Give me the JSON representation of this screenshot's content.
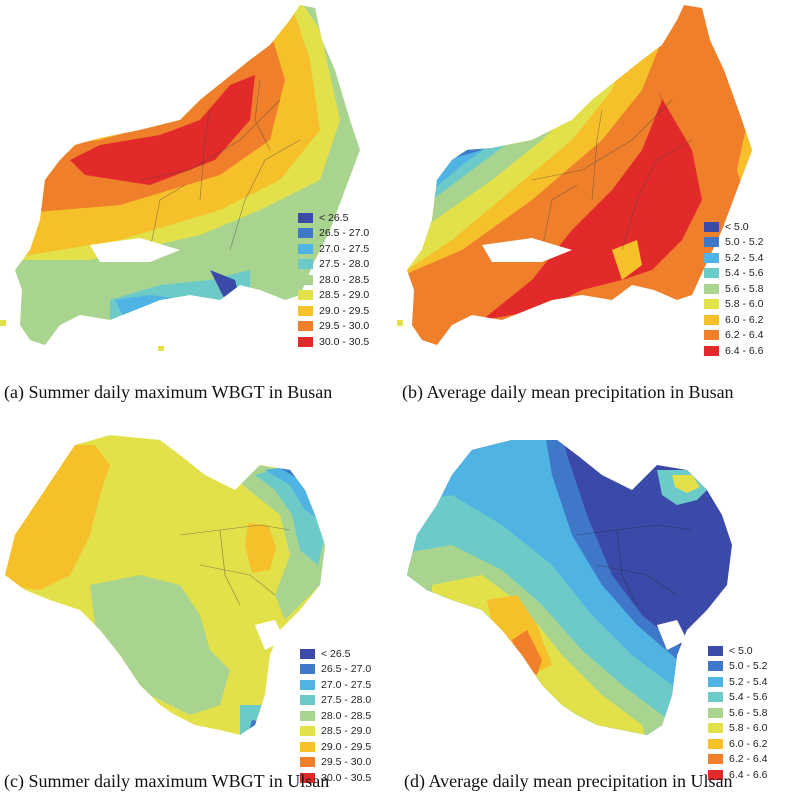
{
  "panels": [
    {
      "id": "a",
      "caption": "(a) Summer daily maximum WBGT in Busan",
      "legend": [
        {
          "label": "< 26.5",
          "color": "#3b4aa8"
        },
        {
          "label": "26.5 - 27.0",
          "color": "#3f78c8"
        },
        {
          "label": "27.0 - 27.5",
          "color": "#4fb3e3"
        },
        {
          "label": "27.5 - 28.0",
          "color": "#6ccac9"
        },
        {
          "label": "28.0 - 28.5",
          "color": "#a8d48f"
        },
        {
          "label": "28.5 - 29.0",
          "color": "#e2e14a"
        },
        {
          "label": "29.0 - 29.5",
          "color": "#f6c02b"
        },
        {
          "label": "29.5 - 30.0",
          "color": "#ef7f2a"
        },
        {
          "label": "30.0 - 30.5",
          "color": "#e32a2a"
        }
      ]
    },
    {
      "id": "b",
      "caption": "(b) Average daily mean precipitation in Busan",
      "legend": [
        {
          "label": "< 5.0",
          "color": "#3b4aa8"
        },
        {
          "label": "5.0 - 5.2",
          "color": "#3f78c8"
        },
        {
          "label": "5.2 - 5.4",
          "color": "#4fb3e3"
        },
        {
          "label": "5.4 - 5.6",
          "color": "#6ccac9"
        },
        {
          "label": "5.6 - 5.8",
          "color": "#a8d48f"
        },
        {
          "label": "5.8 - 6.0",
          "color": "#e2e14a"
        },
        {
          "label": "6.0 - 6.2",
          "color": "#f6c02b"
        },
        {
          "label": "6.2 - 6.4",
          "color": "#ef7f2a"
        },
        {
          "label": "6.4 - 6.6",
          "color": "#e32a2a"
        }
      ]
    },
    {
      "id": "c",
      "caption": "(c) Summer daily maximum WBGT in Ulsan",
      "legend": [
        {
          "label": "< 26.5",
          "color": "#3b4aa8"
        },
        {
          "label": "26.5 - 27.0",
          "color": "#3f78c8"
        },
        {
          "label": "27.0 - 27.5",
          "color": "#4fb3e3"
        },
        {
          "label": "27.5 - 28.0",
          "color": "#6ccac9"
        },
        {
          "label": "28.0 - 28.5",
          "color": "#a8d48f"
        },
        {
          "label": "28.5 - 29.0",
          "color": "#e2e14a"
        },
        {
          "label": "29.0 - 29.5",
          "color": "#f6c02b"
        },
        {
          "label": "29.5 - 30.0",
          "color": "#ef7f2a"
        },
        {
          "label": "30.0 - 30.5",
          "color": "#e32a2a"
        }
      ]
    },
    {
      "id": "d",
      "caption": "(d) Average daily mean precipitation in Ulsan",
      "legend": [
        {
          "label": "< 5.0",
          "color": "#3b4aa8"
        },
        {
          "label": "5.0 - 5.2",
          "color": "#3f78c8"
        },
        {
          "label": "5.2 - 5.4",
          "color": "#4fb3e3"
        },
        {
          "label": "5.4 - 5.6",
          "color": "#6ccac9"
        },
        {
          "label": "5.6 - 5.8",
          "color": "#a8d48f"
        },
        {
          "label": "5.8 - 6.0",
          "color": "#e2e14a"
        },
        {
          "label": "6.0 - 6.2",
          "color": "#f6c02b"
        },
        {
          "label": "6.2 - 6.4",
          "color": "#ef7f2a"
        },
        {
          "label": "6.4 - 6.6",
          "color": "#e32a2a"
        }
      ]
    }
  ]
}
